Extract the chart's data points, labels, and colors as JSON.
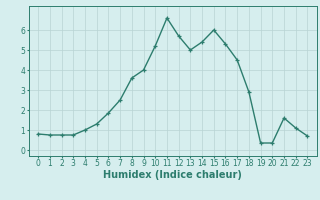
{
  "x": [
    0,
    1,
    2,
    3,
    4,
    5,
    6,
    7,
    8,
    9,
    10,
    11,
    12,
    13,
    14,
    15,
    16,
    17,
    18,
    19,
    20,
    21,
    22,
    23
  ],
  "y": [
    0.8,
    0.75,
    0.75,
    0.75,
    1.0,
    1.3,
    1.85,
    2.5,
    3.6,
    4.0,
    5.2,
    6.6,
    5.7,
    5.0,
    5.4,
    6.0,
    5.3,
    4.5,
    2.9,
    0.35,
    0.35,
    1.6,
    1.1,
    0.7
  ],
  "line_color": "#2d7d6e",
  "marker": "+",
  "marker_size": 3.5,
  "xlabel": "Humidex (Indice chaleur)",
  "ylim": [
    -0.3,
    7.2
  ],
  "xlim": [
    -0.8,
    23.8
  ],
  "yticks": [
    0,
    1,
    2,
    3,
    4,
    5,
    6
  ],
  "xticks": [
    0,
    1,
    2,
    3,
    4,
    5,
    6,
    7,
    8,
    9,
    10,
    11,
    12,
    13,
    14,
    15,
    16,
    17,
    18,
    19,
    20,
    21,
    22,
    23
  ],
  "bg_color": "#d6eeee",
  "grid_color": "#b8d4d4",
  "tick_label_fontsize": 5.5,
  "xlabel_fontsize": 7.0,
  "line_width": 1.0,
  "marker_edge_width": 0.9
}
